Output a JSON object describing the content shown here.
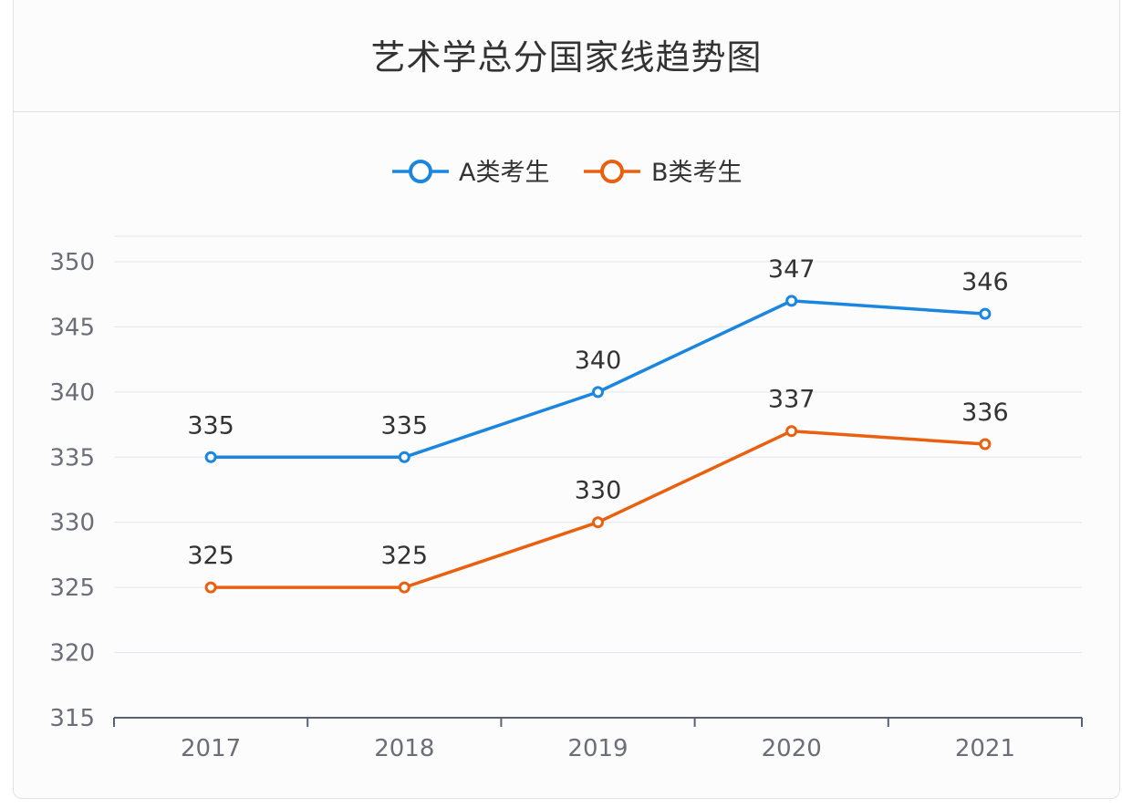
{
  "page": {
    "title": "艺术学总分国家线趋势图"
  },
  "chart_data": {
    "type": "line",
    "title": "艺术学总分国家线趋势图",
    "x": [
      "2017",
      "2018",
      "2019",
      "2020",
      "2021"
    ],
    "ylim": [
      315,
      350
    ],
    "yticks": [
      315,
      320,
      325,
      330,
      335,
      340,
      345,
      350
    ],
    "grid": true,
    "legend_position": "top-center",
    "series": [
      {
        "name": "A类考生",
        "values": [
          335,
          335,
          340,
          347,
          346
        ],
        "color": "#1a86e0"
      },
      {
        "name": "B类考生",
        "values": [
          325,
          325,
          330,
          337,
          336
        ],
        "color": "#e9600f"
      }
    ]
  }
}
